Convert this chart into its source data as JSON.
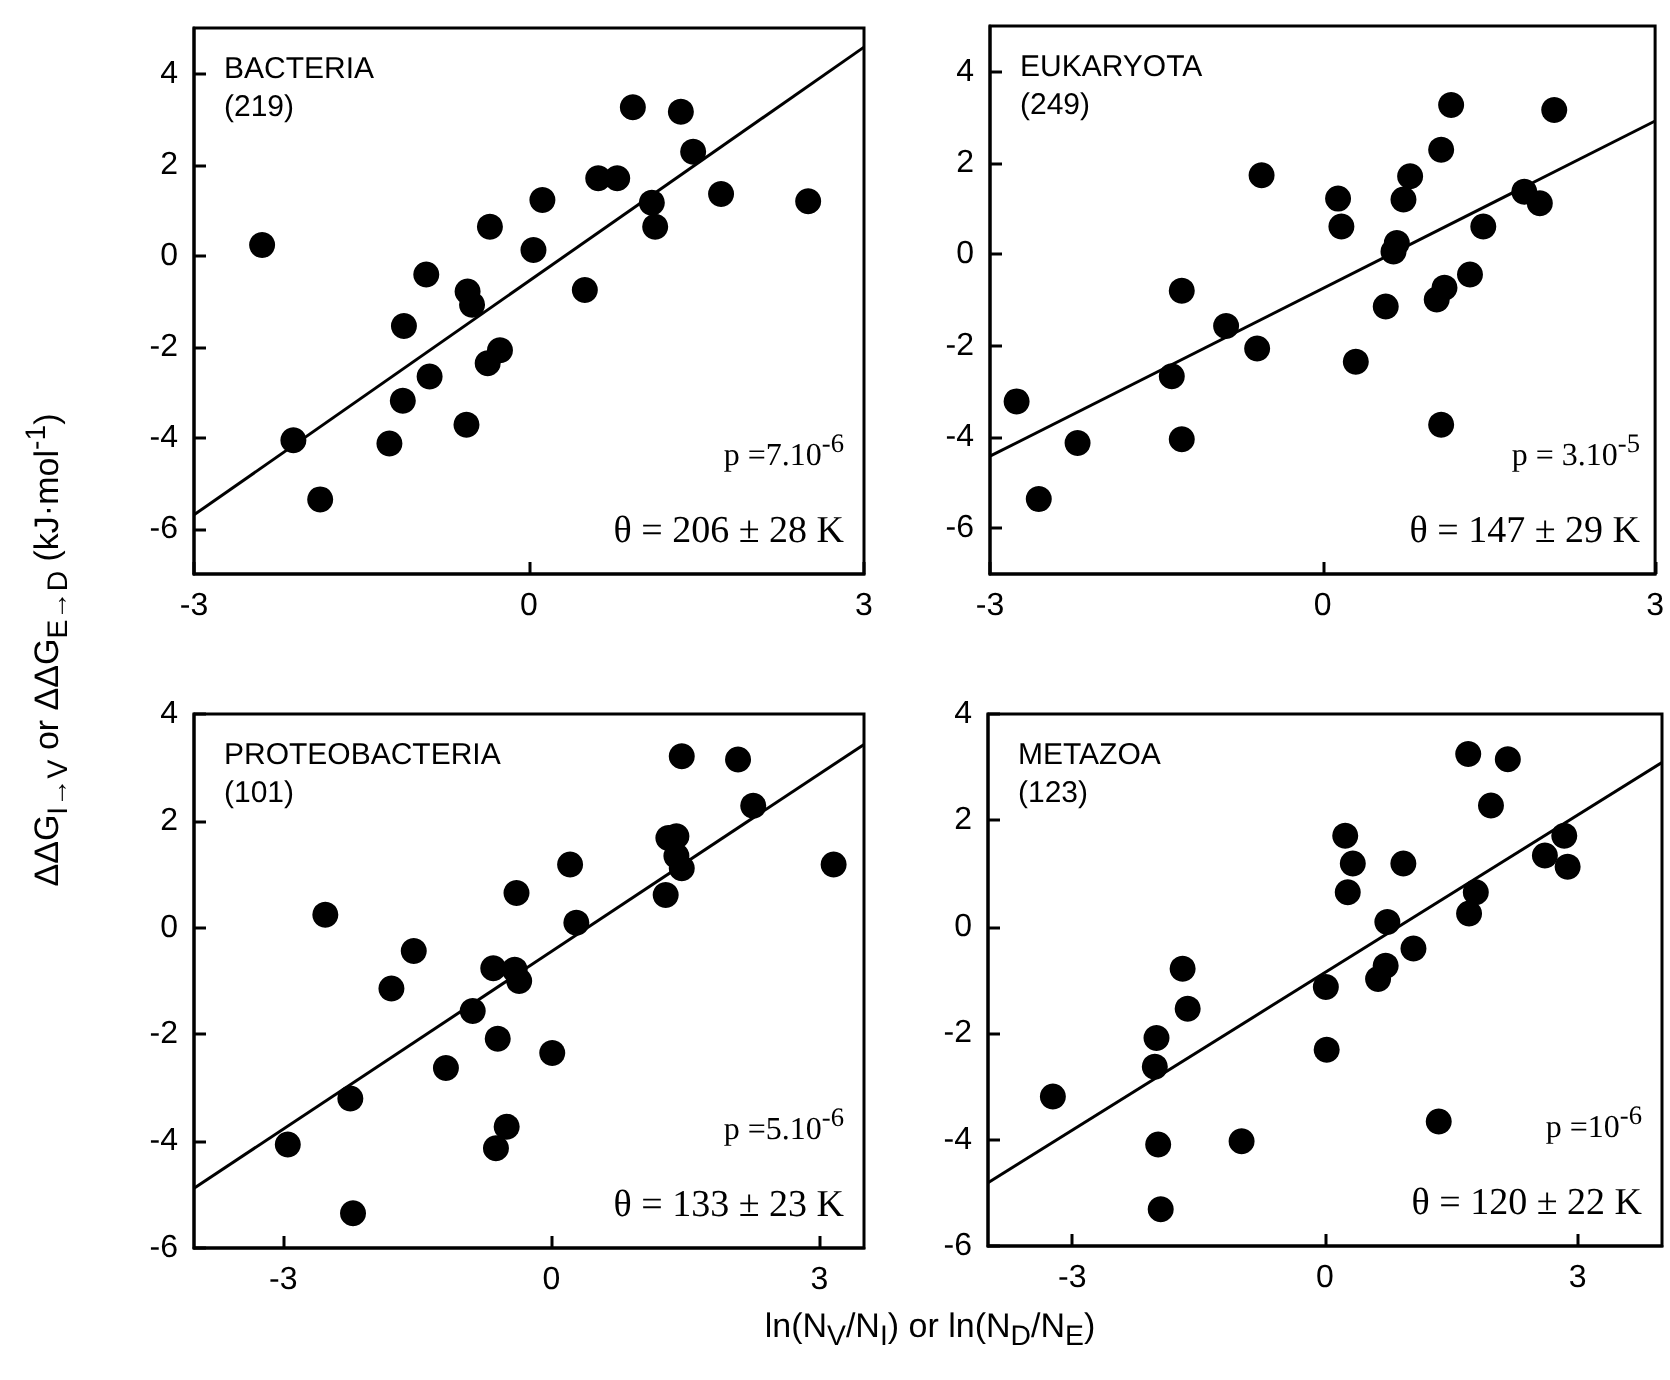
{
  "chart_data": [
    {
      "type": "scatter",
      "title": "BACTERIA",
      "subtitle": "(219)",
      "ylabel": "ΔΔG$_{I→V}$ or ΔΔG$_{E→D}$ (kJ·mol$^{-1}$)",
      "annotations": [
        "p =7.10$^{-6}$",
        "θ = 206 ± 28 K"
      ],
      "xlim": [
        -3,
        3
      ],
      "ylim": [
        -7,
        5
      ],
      "xticks": [
        -3,
        0,
        3
      ],
      "yticks": [
        -6,
        -4,
        -2,
        0,
        2,
        4
      ],
      "series": [
        {
          "color": "#000000",
          "marker": "circle",
          "x": [
            -2.39,
            -2.11,
            -1.87,
            -1.25,
            -1.13,
            -1.12,
            -0.92,
            -0.89,
            -0.56,
            -0.55,
            -0.51,
            -0.37,
            -0.26,
            -0.35,
            0.04,
            0.12,
            0.5,
            0.62,
            0.79,
            0.93,
            1.1,
            1.13,
            1.36,
            1.47,
            1.72,
            2.5
          ],
          "values": [
            0.23,
            -4.06,
            -5.36,
            -4.13,
            -3.19,
            -1.55,
            -0.42,
            -2.66,
            -3.72,
            -0.79,
            -1.08,
            -2.37,
            -2.08,
            0.63,
            0.12,
            1.22,
            -0.76,
            1.7,
            1.7,
            3.26,
            1.16,
            0.63,
            3.16,
            2.28,
            1.35,
            1.19
          ]
        },
        {
          "type": "line",
          "color": "#000000",
          "line_style": "solid",
          "x": [
            -3,
            3
          ],
          "values": [
            -5.7,
            4.58
          ]
        }
      ]
    },
    {
      "type": "scatter",
      "title": "EUKARYOTA",
      "subtitle": "(249)",
      "annotations": [
        "p = 3.10$^{-5}$",
        "θ = 147 ± 29 K"
      ],
      "xlim": [
        -3,
        3
      ],
      "ylim": [
        -7,
        5
      ],
      "xticks": [
        -3,
        0,
        3
      ],
      "yticks": [
        -6,
        -4,
        -2,
        0,
        2,
        4
      ],
      "series": [
        {
          "color": "#000000",
          "marker": "circle",
          "x": [
            -2.76,
            -2.56,
            -2.21,
            -1.36,
            -1.27,
            -1.27,
            -0.87,
            -0.59,
            -0.55,
            0.14,
            0.17,
            0.3,
            0.57,
            0.64,
            0.67,
            0.73,
            0.79,
            1.03,
            1.1,
            1.07,
            1.07,
            1.16,
            1.33,
            1.45,
            1.82,
            1.96,
            2.09
          ],
          "values": [
            -3.22,
            -5.36,
            -4.13,
            -2.67,
            -0.8,
            -4.05,
            -1.57,
            -2.06,
            1.73,
            1.22,
            0.61,
            -2.35,
            -1.14,
            0.06,
            0.25,
            1.2,
            1.71,
            -0.99,
            -0.73,
            2.29,
            -3.73,
            3.27,
            -0.44,
            0.61,
            1.37,
            1.12,
            3.16
          ]
        },
        {
          "type": "line",
          "color": "#000000",
          "line_style": "solid",
          "x": [
            -3,
            3
          ],
          "values": [
            -4.42,
            2.92
          ]
        }
      ]
    },
    {
      "type": "scatter",
      "title": "PROTEOBACTERIA",
      "subtitle": "(101)",
      "xlabel": "ln(N$_{V}$/N$_{I}$) or ln(N$_{D}$/N$_{E}$)",
      "annotations": [
        "p =5.10$^{-6}$",
        "θ = 133 ± 23 K"
      ],
      "xlim": [
        -4,
        3.5
      ],
      "ylim": [
        -6,
        4
      ],
      "xticks": [
        -3,
        0,
        3
      ],
      "yticks": [
        -6,
        -4,
        -2,
        0,
        2,
        4
      ],
      "series": [
        {
          "color": "#000000",
          "marker": "circle",
          "x": [
            -2.95,
            -2.53,
            -2.25,
            -2.22,
            -1.79,
            -1.54,
            -1.18,
            -0.88,
            -0.65,
            -0.6,
            -0.62,
            -0.5,
            -0.41,
            -0.36,
            -0.39,
            0.01,
            0.21,
            0.28,
            1.28,
            1.31,
            1.4,
            1.4,
            1.46,
            1.46,
            2.09,
            2.26,
            3.16
          ],
          "values": [
            -4.06,
            0.24,
            -3.2,
            -5.35,
            -1.14,
            -0.44,
            -2.63,
            -1.56,
            -0.76,
            -2.08,
            -4.13,
            -3.73,
            -0.79,
            -1.0,
            0.65,
            -2.35,
            1.18,
            0.09,
            0.61,
            1.68,
            1.71,
            1.34,
            1.11,
            3.21,
            3.15,
            2.28,
            1.18
          ]
        },
        {
          "type": "line",
          "color": "#000000",
          "line_style": "solid",
          "x": [
            -4,
            3.5
          ],
          "values": [
            -4.88,
            3.43
          ]
        }
      ]
    },
    {
      "type": "scatter",
      "title": "METAZOA",
      "subtitle": "(123)",
      "annotations": [
        "p =10$^{-6}$",
        "θ = 120 ± 22 K"
      ],
      "xlim": [
        -4,
        4
      ],
      "ylim": [
        -6,
        4
      ],
      "xticks": [
        -3,
        0,
        3
      ],
      "yticks": [
        -6,
        -4,
        -2,
        0,
        2,
        4
      ],
      "series": [
        {
          "color": "#000000",
          "marker": "circle",
          "x": [
            -3.23,
            -2.0,
            -2.02,
            -1.98,
            -1.95,
            -1.69,
            -1.63,
            -0.99,
            0.01,
            0.02,
            0.24,
            0.33,
            0.27,
            0.63,
            0.72,
            0.74,
            0.93,
            1.05,
            1.35,
            1.7,
            1.71,
            1.79,
            1.97,
            2.17,
            2.61,
            2.84,
            2.88
          ],
          "values": [
            -3.19,
            -2.09,
            -2.63,
            -4.09,
            -5.31,
            -0.79,
            -1.54,
            -4.03,
            -1.13,
            -2.31,
            1.71,
            1.19,
            0.65,
            -0.98,
            -0.73,
            0.09,
            1.19,
            -0.41,
            -3.66,
            3.25,
            0.25,
            0.65,
            2.28,
            3.15,
            1.34,
            1.71,
            1.13
          ]
        },
        {
          "type": "line",
          "color": "#000000",
          "line_style": "solid",
          "x": [
            -4,
            4
          ],
          "values": [
            -4.81,
            3.09
          ]
        }
      ]
    }
  ]
}
